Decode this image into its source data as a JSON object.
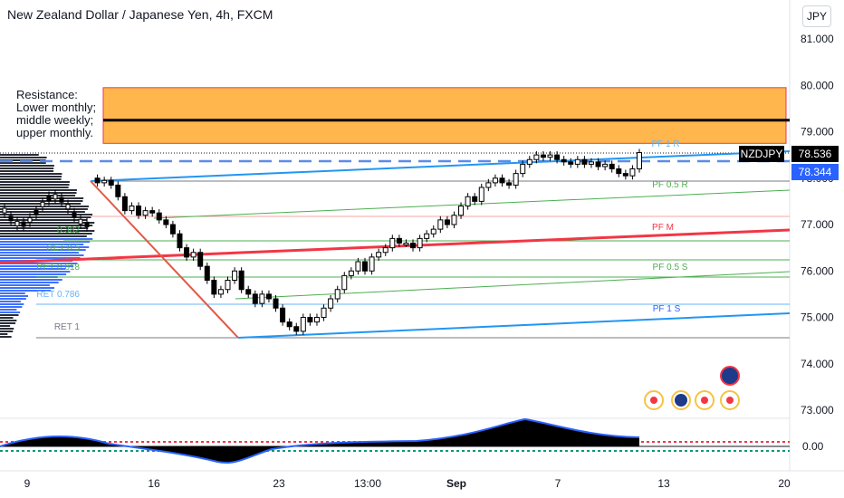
{
  "header": {
    "title": "New Zealand Dollar / Japanese Yen, 4h, FXCM",
    "currency": "JPY"
  },
  "chart_data": {
    "type": "candlestick",
    "title": "New Zealand Dollar / Japanese Yen, 4h, FXCM",
    "yaxis": {
      "ticks": [
        "81.000",
        "80.000",
        "79.000",
        "78.000",
        "77.000",
        "76.000",
        "75.000",
        "74.000",
        "73.000"
      ]
    },
    "osc_axis": {
      "ticks": [
        "0.00"
      ]
    },
    "xaxis": {
      "ticks": [
        "9",
        "16",
        "23",
        "13:00",
        "Sep",
        "7",
        "13",
        "20"
      ]
    },
    "price_tags": [
      {
        "label": "NZDJPY",
        "value": "78.536",
        "color": "#000000"
      },
      {
        "value": "78.344",
        "color": "#2962ff"
      }
    ],
    "resistance_zone": {
      "from": 78.75,
      "to": 79.95,
      "line": 79.25,
      "color": "#ffb74d"
    },
    "annotation": [
      "Resistance:",
      "Lower monthly;",
      "middle weekly;",
      "upper monthly."
    ],
    "fib_levels": [
      {
        "label": "0.382",
        "value": 76.82,
        "color": "#4caf50"
      },
      {
        "label": "RET 0.5",
        "value": 76.45,
        "color": "#4caf50"
      },
      {
        "label": "RET 0.618",
        "value": 76.05,
        "color": "#4caf50"
      },
      {
        "label": "RET 0.786",
        "value": 75.42,
        "color": "#64b5f6"
      },
      {
        "label": "RET 1",
        "value": 74.6,
        "color": "#787b86"
      }
    ],
    "pitchfork_labels": [
      {
        "label": "PF 1 R",
        "color": "#64b5f6"
      },
      {
        "label": "PF 0.5 R",
        "color": "#4caf50"
      },
      {
        "label": "PF M",
        "color": "#f23645"
      },
      {
        "label": "PF 0.5 S",
        "color": "#4caf50"
      },
      {
        "label": "PF 1 S",
        "color": "#2962ff"
      }
    ],
    "colors": {
      "up": "#000000",
      "down": "#000000",
      "up_body": "#ffffff",
      "osc": "#000000",
      "osc_line": "#2962ff",
      "dots_red": "#f23645",
      "dots_green": "#089981"
    }
  }
}
